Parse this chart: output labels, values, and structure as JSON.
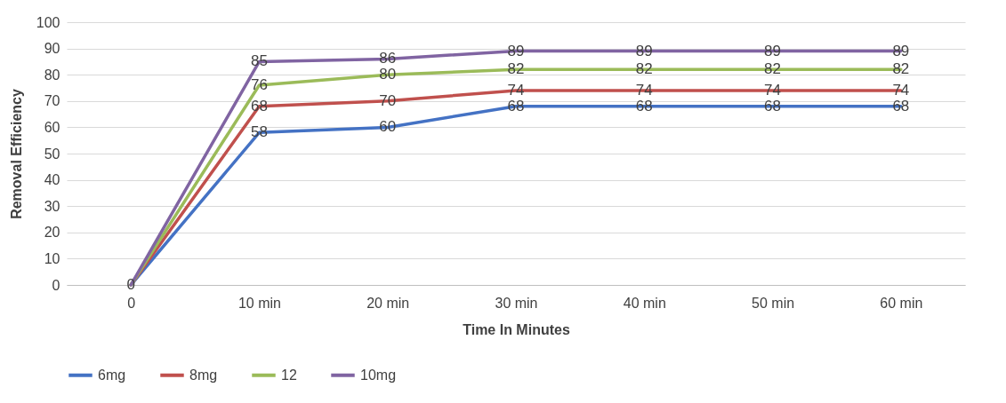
{
  "chart_data": {
    "type": "line",
    "xlabel": "Time In Minutes",
    "ylabel": "Removal Efficiency",
    "categories": [
      "0",
      "10 min",
      "20 min",
      "30 min",
      "40 min",
      "50 min",
      "60 min"
    ],
    "series": [
      {
        "name": "6mg",
        "color": "#4472c4",
        "values": [
          0,
          58,
          60,
          68,
          68,
          68,
          68
        ],
        "value_labels": [
          "0",
          "58",
          "60",
          "68",
          "68",
          "68",
          "68"
        ]
      },
      {
        "name": "8mg",
        "color": "#c0504d",
        "values": [
          0,
          68,
          70,
          74,
          74,
          74,
          74
        ],
        "value_labels": [
          null,
          "68",
          "70",
          "74",
          "74",
          "74",
          "74"
        ]
      },
      {
        "name": "12",
        "color": "#9bbb59",
        "values": [
          0,
          76,
          80,
          82,
          82,
          82,
          82
        ],
        "value_labels": [
          null,
          "76",
          "80",
          "82",
          "82",
          "82",
          "82"
        ]
      },
      {
        "name": "10mg",
        "color": "#8064a2",
        "values": [
          0,
          85,
          86,
          89,
          89,
          89,
          89
        ],
        "value_labels": [
          null,
          "85",
          "86",
          "89",
          "89",
          "89",
          "89"
        ]
      }
    ],
    "ylim": [
      0,
      100
    ],
    "yticks": [
      0,
      10,
      20,
      30,
      40,
      50,
      60,
      70,
      80,
      90,
      100
    ],
    "grid": "y",
    "legend": "bottom"
  }
}
